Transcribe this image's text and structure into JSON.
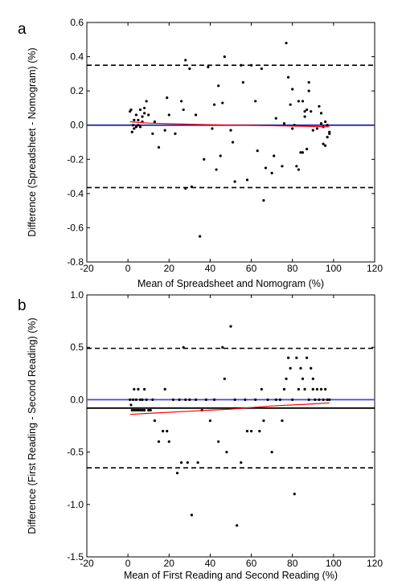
{
  "chart_data": [
    {
      "type": "scatter",
      "panel_label": "a",
      "xlabel": "Mean of Spreadsheet and Nomogram (%)",
      "ylabel": "Difference (Spreadsheet - Nomogram) (%)",
      "xlim": [
        -20,
        120
      ],
      "ylim": [
        -0.8,
        0.6
      ],
      "xticks": [
        -20,
        0,
        20,
        40,
        60,
        80,
        100,
        120
      ],
      "yticks": [
        -0.8,
        -0.6,
        -0.4,
        -0.2,
        0.0,
        0.2,
        0.4,
        0.6
      ],
      "ytick_labels": [
        "-0.8",
        "-0.6",
        "-0.4",
        "-0.2",
        "0.0",
        "0.2",
        "0.4",
        "0.6"
      ],
      "grid": false,
      "reference_lines": {
        "mean_difference": {
          "y": 0.0,
          "style": "solid",
          "color": "#1a1aa8"
        },
        "upper_limit": {
          "y": 0.35,
          "style": "dashed",
          "color": "#000000"
        },
        "lower_limit": {
          "y": -0.365,
          "style": "dashed",
          "color": "#000000"
        }
      },
      "trend": {
        "color": "#ff0000",
        "x": [
          1,
          10,
          30,
          50,
          70,
          90,
          98
        ],
        "y": [
          0.02,
          0.012,
          0.005,
          0.0,
          -0.003,
          -0.008,
          -0.01
        ]
      },
      "points": {
        "x": [
          1,
          1.5,
          2,
          2.5,
          3,
          3,
          4,
          4,
          5,
          5,
          6,
          6,
          7,
          7,
          8,
          8,
          9,
          10,
          12,
          13,
          15,
          18,
          19,
          20,
          23,
          26,
          27,
          28,
          28,
          30,
          31,
          33,
          35,
          37,
          39,
          41,
          42,
          43,
          44,
          45,
          46,
          47,
          50,
          51,
          52,
          55,
          56,
          58,
          60,
          62,
          63,
          65,
          66,
          67,
          70,
          71,
          72,
          75,
          76,
          77,
          78,
          79,
          80,
          80,
          81,
          82,
          83,
          83,
          84,
          85,
          85,
          86,
          86,
          87,
          87,
          88,
          88,
          89,
          90,
          92,
          93,
          94,
          94,
          95,
          95,
          96,
          96,
          97,
          97,
          98,
          98
        ],
        "y": [
          0.08,
          0.09,
          -0.04,
          0.0,
          0.03,
          -0.02,
          0.06,
          -0.01,
          0.03,
          0.0,
          0.09,
          -0.01,
          0.05,
          0.02,
          0.1,
          0.07,
          0.14,
          0.06,
          -0.05,
          0.02,
          -0.13,
          -0.03,
          0.16,
          0.06,
          -0.05,
          0.14,
          0.09,
          0.38,
          -0.37,
          0.33,
          -0.36,
          0.06,
          -0.65,
          -0.2,
          0.34,
          -0.02,
          0.12,
          -0.26,
          0.23,
          -0.18,
          0.13,
          0.4,
          -0.03,
          -0.1,
          -0.33,
          0.35,
          0.25,
          -0.32,
          0.35,
          0.14,
          -0.15,
          0.33,
          -0.44,
          -0.25,
          -0.28,
          -0.18,
          0.04,
          -0.24,
          0.01,
          0.48,
          0.28,
          0.12,
          -0.02,
          0.21,
          0.0,
          -0.24,
          0.14,
          -0.26,
          -0.16,
          0.14,
          -0.16,
          0.05,
          0.08,
          0.09,
          -0.14,
          0.25,
          0.2,
          0.08,
          -0.03,
          -0.02,
          0.11,
          0.07,
          0.01,
          -0.01,
          -0.11,
          0.02,
          -0.12,
          -0.07,
          0.0,
          -0.04,
          -0.05
        ]
      }
    },
    {
      "type": "scatter",
      "panel_label": "b",
      "xlabel": "Mean of First Reading and Second Reading (%)",
      "ylabel": "Difference (First Reading - Second Reading) (%)",
      "xlim": [
        -20,
        120
      ],
      "ylim": [
        -1.5,
        1.0
      ],
      "xticks": [
        -20,
        0,
        20,
        40,
        60,
        80,
        100,
        120
      ],
      "yticks": [
        -1.5,
        -1.0,
        -0.5,
        0.0,
        0.5,
        1.0
      ],
      "ytick_labels": [
        "-1.5",
        "-1.0",
        "-0.5",
        "0.0",
        "0.5",
        "1.0"
      ],
      "grid": false,
      "reference_lines": {
        "zero_line": {
          "y": 0.0,
          "style": "solid",
          "color": "#4a4ad8"
        },
        "mean_difference": {
          "y": -0.08,
          "style": "solid",
          "color": "#000000"
        },
        "upper_limit": {
          "y": 0.49,
          "style": "dashed",
          "color": "#000000"
        },
        "lower_limit": {
          "y": -0.65,
          "style": "dashed",
          "color": "#000000"
        }
      },
      "trend": {
        "color": "#ff0000",
        "x": [
          1,
          10,
          30,
          50,
          70,
          90,
          98
        ],
        "y": [
          -0.14,
          -0.13,
          -0.11,
          -0.09,
          -0.06,
          -0.04,
          -0.03
        ]
      },
      "points": {
        "x": [
          1,
          1.5,
          2,
          2.5,
          3,
          3,
          4,
          4,
          5,
          5,
          6,
          6,
          7,
          7,
          8,
          8,
          9,
          10,
          11,
          12,
          13,
          15,
          17,
          18,
          19,
          20,
          22,
          24,
          25,
          26,
          27,
          28,
          29,
          30,
          31,
          33,
          34,
          36,
          38,
          40,
          42,
          44,
          46,
          47,
          48,
          50,
          52,
          53,
          55,
          57,
          58,
          60,
          62,
          64,
          65,
          66,
          68,
          70,
          72,
          74,
          75,
          76,
          77,
          78,
          79,
          80,
          81,
          82,
          83,
          84,
          85,
          86,
          87,
          88,
          89,
          90,
          90,
          91,
          92,
          93,
          94,
          95,
          96,
          97,
          98
        ],
        "y": [
          0.0,
          -0.05,
          -0.1,
          0.0,
          -0.1,
          0.1,
          0.0,
          -0.1,
          0.1,
          -0.1,
          0.0,
          -0.1,
          0.0,
          -0.1,
          0.1,
          -0.1,
          0.0,
          -0.1,
          -0.1,
          0.0,
          -0.2,
          -0.4,
          -0.3,
          0.1,
          -0.3,
          -0.4,
          0.0,
          -0.7,
          0.0,
          -0.6,
          0.5,
          0.0,
          -0.6,
          0.0,
          -1.1,
          0.0,
          -0.6,
          -0.1,
          0.0,
          -0.2,
          0.0,
          -0.4,
          0.5,
          0.2,
          -0.5,
          0.7,
          0.0,
          -1.2,
          -0.6,
          0.0,
          -0.3,
          -0.3,
          0.0,
          -0.3,
          0.1,
          -0.2,
          0.0,
          -0.5,
          0.0,
          0.0,
          -0.2,
          0.1,
          0.2,
          0.4,
          0.3,
          0.0,
          -0.9,
          0.4,
          0.1,
          0.3,
          0.2,
          0.1,
          0.4,
          0.0,
          0.3,
          0.1,
          0.2,
          0.0,
          0.1,
          0.0,
          0.1,
          0.0,
          0.1,
          0.0,
          0.0
        ]
      }
    }
  ]
}
